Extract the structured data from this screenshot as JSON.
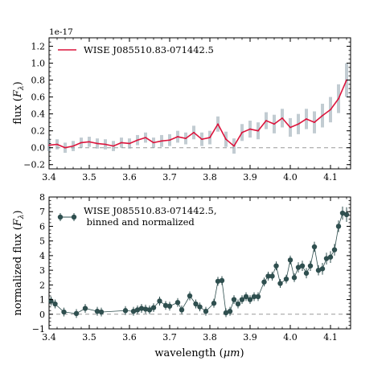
{
  "chart_data": [
    {
      "type": "line",
      "xlim": [
        3.4,
        4.15
      ],
      "ylim": [
        -0.25,
        1.3
      ],
      "ylabel_main": "flux",
      "ylabel_sym": "F",
      "ylabel_sub": "λ",
      "ylabel_close": ")",
      "ylabel_open": " (",
      "y_offset_text": "1e-17",
      "x_ticks": [
        3.4,
        3.5,
        3.6,
        3.7,
        3.8,
        3.9,
        4.0,
        4.1
      ],
      "x_tick_labels": [
        "3.4",
        "3.5",
        "3.6",
        "3.7",
        "3.8",
        "3.9",
        "4.0",
        "4.1"
      ],
      "y_ticks": [
        -0.2,
        0.0,
        0.2,
        0.4,
        0.6,
        0.8,
        1.0,
        1.2
      ],
      "y_tick_labels": [
        "−0.2",
        "0.0",
        "0.2",
        "0.4",
        "0.6",
        "0.8",
        "1.0",
        "1.2"
      ],
      "legend": {
        "label": "WISE J085510.83-071442.5",
        "color": "#dc143c",
        "placement": "top-left"
      },
      "zero_line": {
        "y": 0,
        "style": "dashed",
        "color": "#999999"
      },
      "series": [
        {
          "name": "WISE J085510.83-071442.5",
          "color": "#dc143c",
          "error_color": "#8fa3ad",
          "x": [
            3.4,
            3.42,
            3.44,
            3.46,
            3.48,
            3.5,
            3.52,
            3.54,
            3.56,
            3.58,
            3.6,
            3.62,
            3.64,
            3.66,
            3.68,
            3.7,
            3.72,
            3.74,
            3.76,
            3.78,
            3.8,
            3.82,
            3.84,
            3.86,
            3.88,
            3.9,
            3.92,
            3.94,
            3.96,
            3.98,
            4.0,
            4.02,
            4.04,
            4.06,
            4.08,
            4.1,
            4.12,
            4.14
          ],
          "y": [
            0.03,
            0.04,
            0.0,
            0.02,
            0.06,
            0.07,
            0.05,
            0.04,
            0.02,
            0.06,
            0.05,
            0.09,
            0.12,
            0.06,
            0.08,
            0.09,
            0.13,
            0.11,
            0.18,
            0.1,
            0.12,
            0.28,
            0.1,
            0.02,
            0.18,
            0.22,
            0.2,
            0.32,
            0.28,
            0.35,
            0.24,
            0.28,
            0.34,
            0.3,
            0.38,
            0.45,
            0.58,
            0.8
          ],
          "yerr": [
            0.07,
            0.06,
            0.06,
            0.06,
            0.06,
            0.06,
            0.06,
            0.06,
            0.06,
            0.06,
            0.06,
            0.06,
            0.06,
            0.06,
            0.07,
            0.07,
            0.07,
            0.07,
            0.08,
            0.08,
            0.08,
            0.09,
            0.09,
            0.09,
            0.1,
            0.1,
            0.1,
            0.1,
            0.11,
            0.11,
            0.11,
            0.12,
            0.12,
            0.13,
            0.14,
            0.15,
            0.17,
            0.2
          ]
        }
      ]
    },
    {
      "type": "scatter",
      "xlim": [
        3.4,
        4.15
      ],
      "ylim": [
        -1,
        8
      ],
      "xlabel_main": "wavelength",
      "xlabel_unit": "μm",
      "ylabel_main": "normalized flux",
      "ylabel_sym": "F",
      "ylabel_sub": "λ",
      "ylabel_close": ")",
      "ylabel_open": " (",
      "x_ticks": [
        3.4,
        3.5,
        3.6,
        3.7,
        3.8,
        3.9,
        4.0,
        4.1
      ],
      "x_tick_labels": [
        "3.4",
        "3.5",
        "3.6",
        "3.7",
        "3.8",
        "3.9",
        "4.0",
        "4.1"
      ],
      "y_ticks": [
        -1,
        0,
        1,
        2,
        3,
        4,
        5,
        6,
        7,
        8
      ],
      "y_tick_labels": [
        "−1",
        "0",
        "1",
        "2",
        "3",
        "4",
        "5",
        "6",
        "7",
        "8"
      ],
      "legend": {
        "label_line1": "WISE J085510.83-071442.5,",
        "label_line2": " binned and normalized",
        "color": "#2f4f4f",
        "placement": "top-left"
      },
      "zero_line": {
        "y": 0,
        "style": "dashed",
        "color": "#999999"
      },
      "series": [
        {
          "name": "WISE J085510.83-071442.5, binned and normalized",
          "color": "#2f4f4f",
          "x": [
            3.405,
            3.415,
            3.437,
            3.468,
            3.49,
            3.52,
            3.53,
            3.59,
            3.61,
            3.62,
            3.63,
            3.64,
            3.65,
            3.66,
            3.675,
            3.69,
            3.7,
            3.72,
            3.73,
            3.75,
            3.765,
            3.775,
            3.79,
            3.81,
            3.82,
            3.83,
            3.84,
            3.85,
            3.86,
            3.87,
            3.88,
            3.89,
            3.9,
            3.91,
            3.92,
            3.935,
            3.945,
            3.955,
            3.965,
            3.975,
            3.99,
            4.0,
            4.01,
            4.02,
            4.03,
            4.04,
            4.05,
            4.06,
            4.07,
            4.08,
            4.09,
            4.1,
            4.11,
            4.12,
            4.13,
            4.14
          ],
          "y": [
            0.9,
            0.7,
            0.15,
            0.05,
            0.4,
            0.2,
            0.15,
            0.25,
            0.2,
            0.3,
            0.4,
            0.35,
            0.3,
            0.45,
            0.9,
            0.6,
            0.55,
            0.8,
            0.3,
            1.25,
            0.7,
            0.5,
            0.2,
            0.75,
            2.25,
            2.3,
            0.1,
            0.2,
            1.0,
            0.7,
            1.0,
            1.2,
            1.0,
            1.2,
            1.2,
            2.2,
            2.6,
            2.6,
            3.3,
            2.1,
            2.4,
            3.7,
            2.5,
            3.2,
            3.3,
            2.8,
            3.3,
            4.6,
            3.0,
            3.1,
            3.8,
            3.9,
            4.4,
            6.0,
            6.9,
            6.8
          ],
          "yerr": [
            0.3,
            0.3,
            0.3,
            0.3,
            0.3,
            0.3,
            0.3,
            0.3,
            0.3,
            0.3,
            0.3,
            0.3,
            0.3,
            0.3,
            0.3,
            0.3,
            0.3,
            0.3,
            0.3,
            0.3,
            0.3,
            0.3,
            0.3,
            0.3,
            0.3,
            0.3,
            0.3,
            0.3,
            0.3,
            0.3,
            0.3,
            0.3,
            0.3,
            0.3,
            0.3,
            0.3,
            0.3,
            0.3,
            0.3,
            0.3,
            0.3,
            0.3,
            0.3,
            0.35,
            0.35,
            0.35,
            0.35,
            0.35,
            0.35,
            0.4,
            0.4,
            0.4,
            0.4,
            0.4,
            0.45,
            0.5
          ]
        }
      ]
    }
  ]
}
